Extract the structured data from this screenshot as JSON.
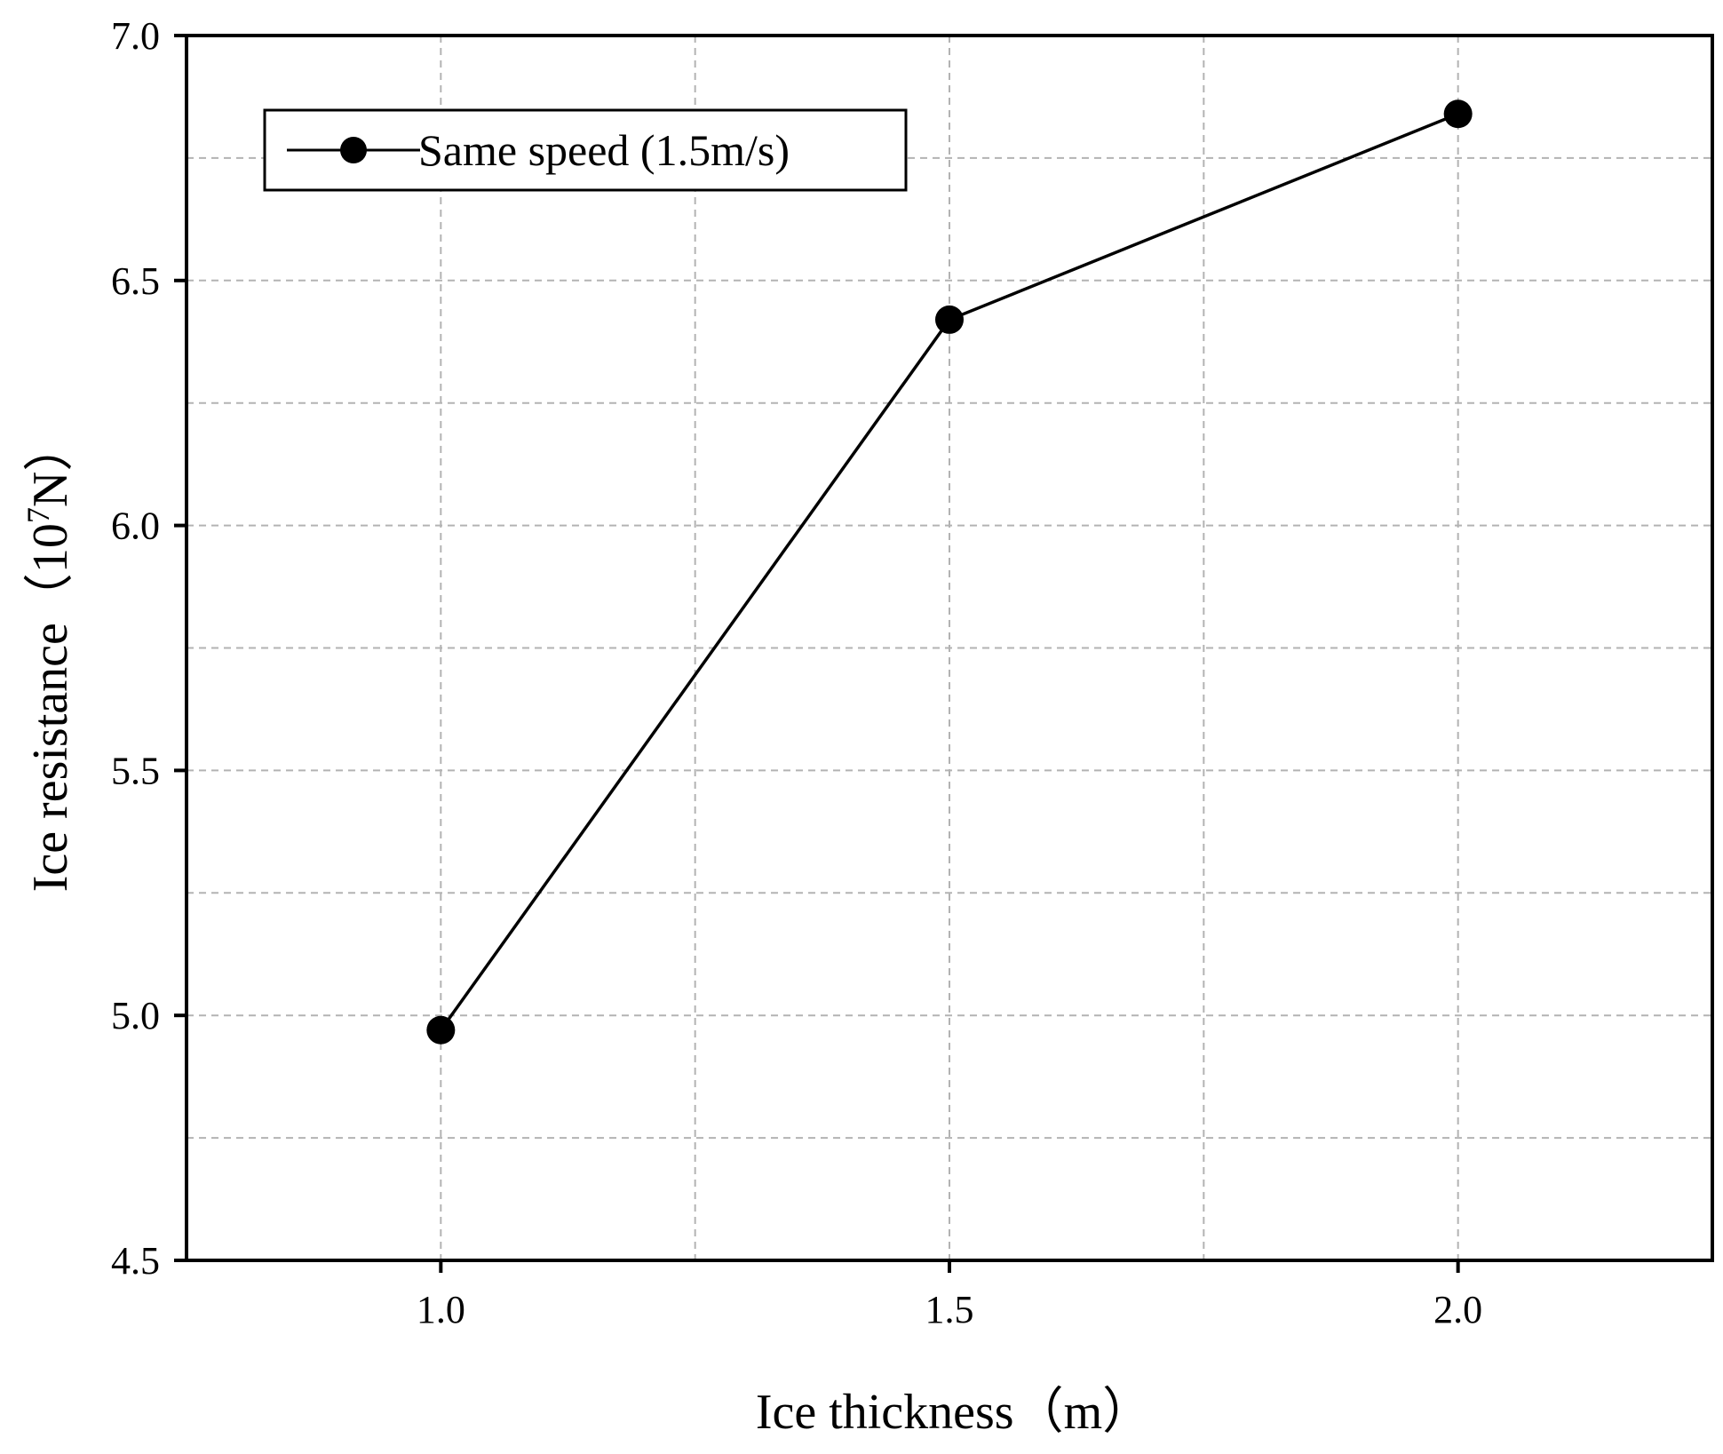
{
  "chart_data": {
    "type": "line",
    "title": "",
    "xlabel": "Ice thickness（m）",
    "ylabel_main": "Ice resistance（10",
    "ylabel_sup": "7",
    "ylabel_tail": "N）",
    "xlim": [
      0.75,
      2.25
    ],
    "ylim": [
      4.5,
      7.0
    ],
    "x_ticks": [
      1.0,
      1.5,
      2.0
    ],
    "x_tick_labels": [
      "1.0",
      "1.5",
      "2.0"
    ],
    "x_minor_grid": [
      1.25,
      1.75
    ],
    "y_ticks": [
      4.5,
      5.0,
      5.5,
      6.0,
      6.5,
      7.0
    ],
    "y_tick_labels": [
      "4.5",
      "5.0",
      "5.5",
      "6.0",
      "6.5",
      "7.0"
    ],
    "y_minor_grid": [
      4.75,
      5.25,
      5.75,
      6.25,
      6.75
    ],
    "grid": true,
    "legend_position": "top-left",
    "series": [
      {
        "name": "Same speed (1.5m/s)",
        "x": [
          1.0,
          1.5,
          2.0
        ],
        "y": [
          4.97,
          6.42,
          6.84
        ],
        "color": "#000000",
        "marker": "circle"
      }
    ]
  }
}
